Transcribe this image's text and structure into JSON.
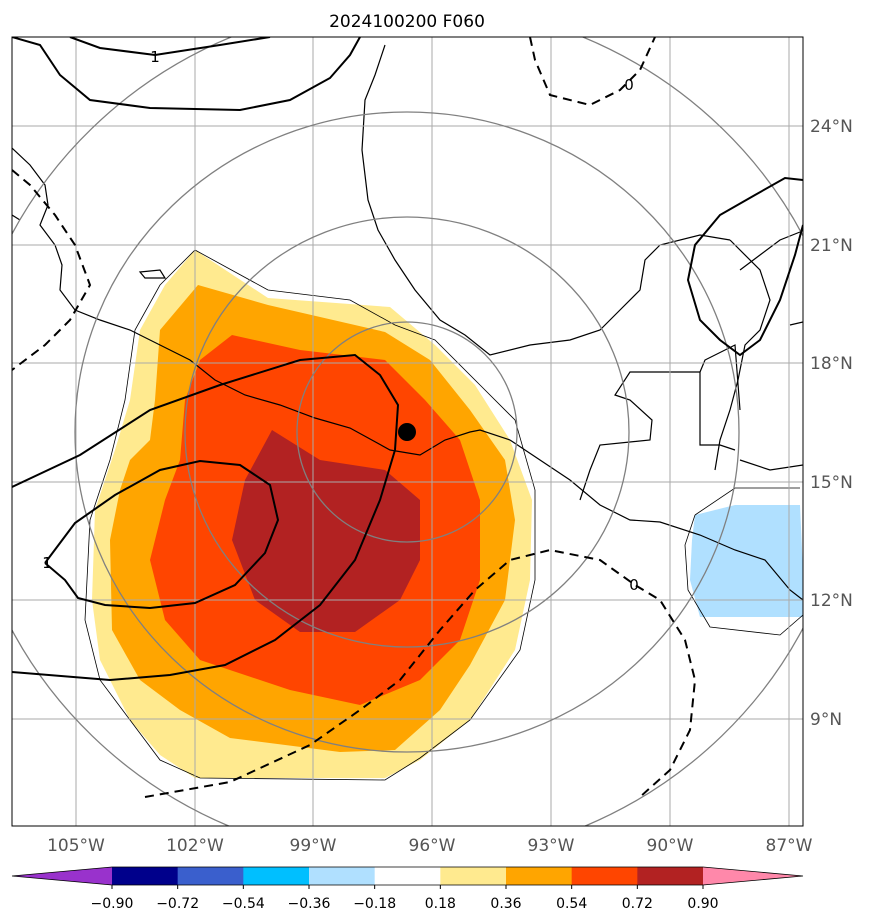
{
  "title": "2024100200 F060",
  "lat_labels": [
    "24°N",
    "21°N",
    "18°N",
    "15°N",
    "12°N",
    "9°N"
  ],
  "lon_labels": [
    "105°W",
    "102°W",
    "99°W",
    "96°W",
    "93°W",
    "90°W",
    "87°W"
  ],
  "contour_labels": {
    "positive": "1",
    "negative": "0",
    "left": "1"
  },
  "colorbar": {
    "ticks": [
      "−0.90",
      "−0.72",
      "−0.54",
      "−0.36",
      "−0.18",
      "0.18",
      "0.36",
      "0.54",
      "0.72",
      "0.90"
    ],
    "colors": [
      "#9932cc",
      "#00008b",
      "#3a5fcd",
      "#00bfff",
      "#b0e0ff",
      "#ffffff",
      "#ffea8f",
      "#ffa500",
      "#ff4500",
      "#b22222",
      "#ff88aa"
    ]
  },
  "fill_colors": {
    "c018": "#ffea8f",
    "c036": "#ffa500",
    "c054": "#ff4500",
    "c072": "#b22222",
    "neg018": "#b0e0ff"
  },
  "storm_marker": {
    "lat": 16.3,
    "lon": -96.7
  }
}
